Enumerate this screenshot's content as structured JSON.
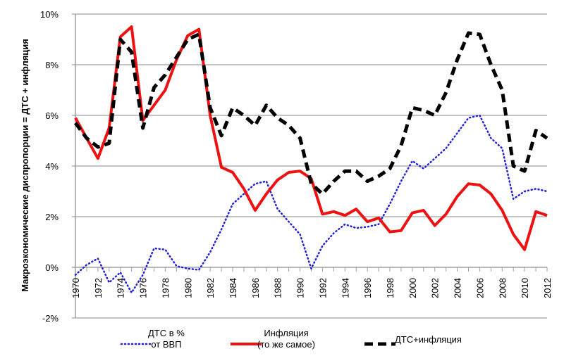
{
  "chart_data": {
    "type": "line",
    "title": "",
    "xlabel": "",
    "ylabel": "Макроэкономические диспропорции = ДТС + инфляция",
    "ylim": [
      -2,
      10
    ],
    "ytick_labels": [
      "-2%",
      "0%",
      "2%",
      "4%",
      "6%",
      "8%",
      "10%"
    ],
    "yticks": [
      -2,
      0,
      2,
      4,
      6,
      8,
      10
    ],
    "xtick_labels": [
      "1970",
      "1972",
      "1974",
      "1976",
      "1978",
      "1980",
      "1982",
      "1984",
      "1986",
      "1988",
      "1990",
      "1992",
      "1994",
      "1996",
      "1998",
      "2000",
      "2002",
      "2004",
      "2006",
      "2008",
      "2010",
      "2012"
    ],
    "grid": "horizontal",
    "legend_position": "bottom",
    "x": [
      1970,
      1971,
      1972,
      1973,
      1974,
      1975,
      1976,
      1977,
      1978,
      1979,
      1980,
      1981,
      1982,
      1983,
      1984,
      1985,
      1986,
      1987,
      1988,
      1989,
      1990,
      1991,
      1992,
      1993,
      1994,
      1995,
      1996,
      1997,
      1998,
      1999,
      2000,
      2001,
      2002,
      2003,
      2004,
      2005,
      2006,
      2007,
      2008,
      2009,
      2010,
      2011,
      2012
    ],
    "series": [
      {
        "name": "ДТС в %\nот ВВП",
        "legend_lines": [
          "ДТС в %",
          "от ВВП"
        ],
        "color": "#1f1fdd",
        "style": "dotted",
        "values": [
          -0.3,
          0.1,
          0.35,
          -0.6,
          -0.2,
          -1.0,
          -0.3,
          0.75,
          0.7,
          0.05,
          -0.05,
          -0.1,
          0.6,
          1.5,
          2.5,
          2.9,
          3.3,
          3.4,
          2.3,
          1.8,
          1.3,
          -0.05,
          0.85,
          1.35,
          1.7,
          1.55,
          1.6,
          1.7,
          2.5,
          3.4,
          4.2,
          3.9,
          4.3,
          4.7,
          5.3,
          5.9,
          6.0,
          5.1,
          4.7,
          2.7,
          3.0,
          3.1,
          3.0
        ]
      },
      {
        "name": "Инфляция\n(то же самое)",
        "legend_lines": [
          "Инфляция",
          "(то же самое)"
        ],
        "color": "#ee1111",
        "style": "solid",
        "values": [
          5.9,
          5.1,
          4.3,
          5.5,
          9.1,
          9.5,
          5.8,
          6.4,
          7.0,
          8.2,
          9.15,
          9.4,
          6.0,
          3.95,
          3.75,
          3.1,
          2.25,
          2.9,
          3.45,
          3.75,
          3.8,
          3.5,
          2.1,
          2.2,
          2.05,
          2.3,
          1.8,
          1.95,
          1.4,
          1.45,
          2.15,
          2.25,
          1.65,
          2.1,
          2.8,
          3.3,
          3.25,
          2.9,
          2.25,
          1.3,
          0.7,
          2.2,
          2.05
        ]
      },
      {
        "name": "ДТС+инфляция",
        "legend_lines": [
          "ДТС+инфляция"
        ],
        "color": "#000000",
        "style": "dashed",
        "values": [
          5.7,
          5.1,
          4.75,
          4.9,
          9.0,
          8.5,
          5.5,
          7.1,
          7.6,
          8.3,
          9.0,
          9.2,
          6.3,
          5.2,
          6.3,
          6.0,
          5.6,
          6.4,
          5.9,
          5.6,
          5.1,
          3.3,
          2.9,
          3.4,
          3.8,
          3.8,
          3.4,
          3.6,
          3.9,
          4.8,
          6.3,
          6.2,
          6.0,
          6.9,
          8.2,
          9.25,
          9.2,
          8.0,
          7.0,
          4.0,
          3.8,
          5.4,
          5.1
        ]
      }
    ]
  }
}
